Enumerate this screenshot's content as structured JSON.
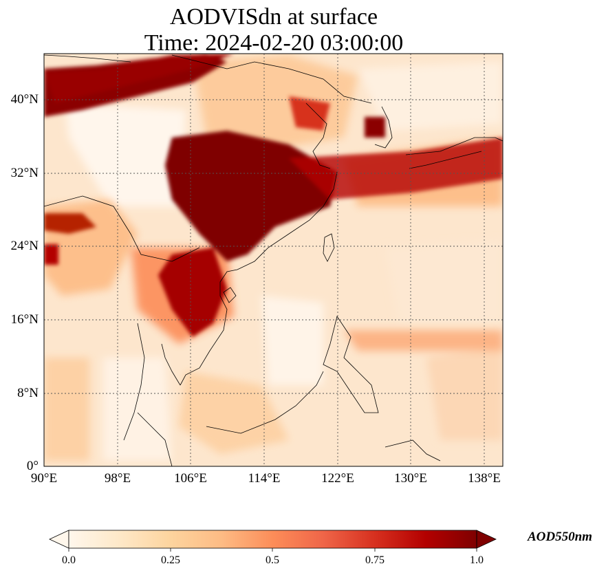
{
  "title": {
    "line1": "AODVISdn at surface",
    "line2": "Time: 2024-02-20 03:00:00"
  },
  "map": {
    "extent": {
      "lon": [
        90,
        140
      ],
      "lat": [
        0,
        45
      ]
    },
    "y_ticks": [
      "40°N",
      "32°N",
      "24°N",
      "16°N",
      "8°N",
      "0°"
    ],
    "x_ticks": [
      "90°E",
      "98°E",
      "106°E",
      "114°E",
      "122°E",
      "130°E",
      "138°E"
    ],
    "gridlines": "dotted",
    "colormap": "OrRd",
    "colors": {
      "low": "#fff5eb",
      "mid": "#fc8d59",
      "high": "#7f0000",
      "coast": "#000000"
    }
  },
  "colorbar": {
    "ticks": [
      "0.0",
      "0.25",
      "0.5",
      "0.75",
      "1.0"
    ],
    "label": "AOD550nm",
    "extend": "both"
  }
}
